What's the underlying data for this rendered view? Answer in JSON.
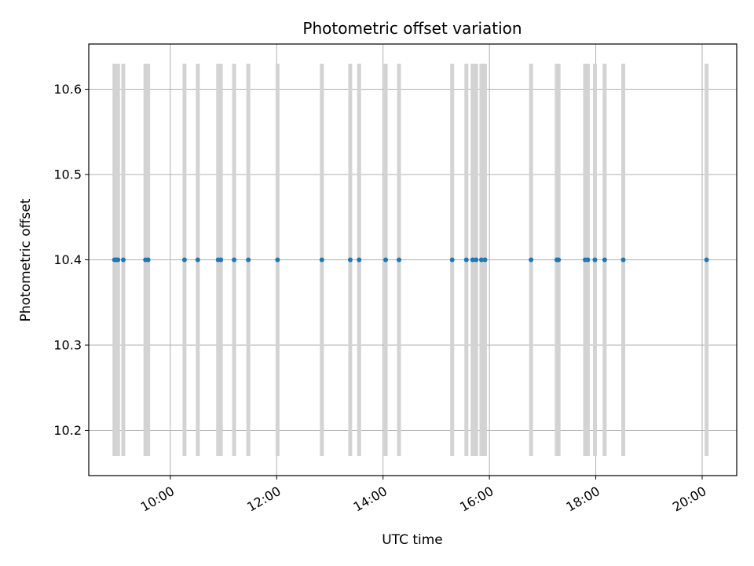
{
  "chart_data": {
    "type": "scatter",
    "title": "Photometric offset variation",
    "xlabel": "UTC time",
    "ylabel": "Photometric offset",
    "x_ticks": [
      "10:00",
      "12:00",
      "14:00",
      "16:00",
      "18:00",
      "20:00"
    ],
    "y_ticks": [
      10.2,
      10.3,
      10.4,
      10.5,
      10.6
    ],
    "xlim": [
      "08:28",
      "20:39"
    ],
    "ylim": [
      10.147,
      10.653
    ],
    "grid": true,
    "colors": {
      "points": "#1f77b4",
      "errorbars": "#d3d3d3",
      "grid": "#b0b0b0"
    },
    "errorbar": {
      "low": 10.17,
      "high": 10.63
    },
    "points": [
      {
        "x": "08:57",
        "y": 10.4
      },
      {
        "x": "08:59",
        "y": 10.4
      },
      {
        "x": "09:01",
        "y": 10.4
      },
      {
        "x": "09:07",
        "y": 10.4
      },
      {
        "x": "09:32",
        "y": 10.4
      },
      {
        "x": "09:35",
        "y": 10.4
      },
      {
        "x": "10:16",
        "y": 10.4
      },
      {
        "x": "10:31",
        "y": 10.4
      },
      {
        "x": "10:54",
        "y": 10.4
      },
      {
        "x": "10:57",
        "y": 10.4
      },
      {
        "x": "11:12",
        "y": 10.4
      },
      {
        "x": "11:28",
        "y": 10.4
      },
      {
        "x": "12:01",
        "y": 10.4
      },
      {
        "x": "12:51",
        "y": 10.4
      },
      {
        "x": "13:23",
        "y": 10.4
      },
      {
        "x": "13:33",
        "y": 10.4
      },
      {
        "x": "14:03",
        "y": 10.4
      },
      {
        "x": "14:18",
        "y": 10.4
      },
      {
        "x": "15:18",
        "y": 10.4
      },
      {
        "x": "15:34",
        "y": 10.4
      },
      {
        "x": "15:41",
        "y": 10.4
      },
      {
        "x": "15:45",
        "y": 10.4
      },
      {
        "x": "15:51",
        "y": 10.4
      },
      {
        "x": "15:55",
        "y": 10.4
      },
      {
        "x": "16:47",
        "y": 10.4
      },
      {
        "x": "17:16",
        "y": 10.4
      },
      {
        "x": "17:18",
        "y": 10.4
      },
      {
        "x": "17:48",
        "y": 10.4
      },
      {
        "x": "17:51",
        "y": 10.4
      },
      {
        "x": "17:59",
        "y": 10.4
      },
      {
        "x": "18:10",
        "y": 10.4
      },
      {
        "x": "18:31",
        "y": 10.4
      },
      {
        "x": "20:05",
        "y": 10.4
      }
    ]
  }
}
